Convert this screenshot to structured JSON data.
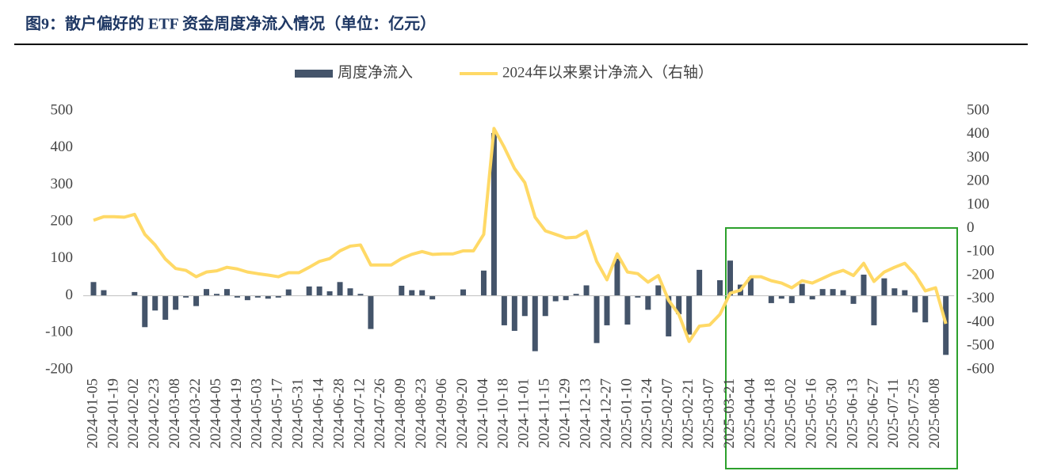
{
  "chart_data": {
    "type": "bar",
    "title": "图9：散户偏好的 ETF 资金周度净流入情况（单位：亿元）",
    "categories": [
      "2024-01-05",
      null,
      "2024-01-19",
      null,
      "2024-02-02",
      null,
      "2024-02-23",
      null,
      "2024-03-08",
      null,
      "2024-03-22",
      null,
      "2024-04-05",
      null,
      "2024-04-19",
      null,
      "2024-05-03",
      null,
      "2024-05-17",
      null,
      "2024-05-31",
      null,
      "2024-06-14",
      null,
      "2024-06-28",
      null,
      "2024-07-12",
      null,
      "2024-07-26",
      null,
      "2024-08-09",
      null,
      "2024-08-23",
      null,
      "2024-09-06",
      null,
      "2024-09-20",
      null,
      "2024-10-04",
      null,
      "2024-10-18",
      null,
      "2024-11-01",
      null,
      "2024-11-15",
      null,
      "2024-11-29",
      null,
      "2024-12-13",
      null,
      "2024-12-27",
      null,
      "2025-01-10",
      null,
      "2025-01-24",
      null,
      "2025-02-07",
      null,
      "2025-02-21",
      null,
      "2025-03-07",
      null,
      "2025-03-21",
      null,
      "2025-04-04",
      null,
      "2025-04-18",
      null,
      "2025-05-02",
      null,
      "2025-05-16",
      null,
      "2025-05-30",
      null,
      "2025-06-13",
      null,
      "2025-06-27",
      null,
      "2025-07-11",
      null,
      "2025-07-25",
      null,
      "2025-08-08",
      null
    ],
    "series": [
      {
        "name": "周度净流入",
        "type": "bar",
        "color": "#44546a",
        "values": [
          37,
          15,
          0,
          0,
          10,
          -85,
          -40,
          -65,
          -38,
          -5,
          -28,
          18,
          5,
          18,
          -5,
          -12,
          -5,
          -8,
          -5,
          17,
          0,
          25,
          25,
          12,
          37,
          20,
          5,
          -90,
          0,
          0,
          27,
          15,
          15,
          -10,
          0,
          0,
          17,
          0,
          68,
          440,
          -80,
          -95,
          -55,
          -150,
          -55,
          -15,
          -12,
          5,
          28,
          -128,
          -80,
          100,
          -78,
          -5,
          -38,
          28,
          -110,
          -50,
          -105,
          70,
          0,
          42,
          95,
          30,
          50,
          0,
          -20,
          -8,
          -20,
          32,
          -10,
          18,
          18,
          15,
          -22,
          57,
          -80,
          47,
          20,
          15,
          -45,
          -72,
          0,
          -160
        ]
      },
      {
        "name": "2024年以来累计净流入（右轴）",
        "type": "line",
        "axis": "y2",
        "color": "#ffd966",
        "values": [
          35,
          50,
          50,
          48,
          60,
          -25,
          -70,
          -130,
          -170,
          -178,
          -205,
          -185,
          -180,
          -165,
          -172,
          -185,
          -192,
          -198,
          -205,
          -188,
          -188,
          -165,
          -140,
          -128,
          -95,
          -75,
          -70,
          -155,
          -155,
          -155,
          -128,
          -110,
          -98,
          -110,
          -108,
          -108,
          -95,
          -95,
          -25,
          425,
          345,
          255,
          195,
          48,
          -10,
          -25,
          -40,
          -37,
          -12,
          -140,
          -218,
          -108,
          -185,
          -192,
          -228,
          -200,
          -305,
          -365,
          -480,
          -415,
          -410,
          -365,
          -275,
          -262,
          -205,
          -205,
          -222,
          -232,
          -252,
          -222,
          -232,
          -212,
          -192,
          -178,
          -200,
          -148,
          -225,
          -185,
          -165,
          -148,
          -195,
          -265,
          -252,
          -405
        ]
      }
    ],
    "ylim": [
      -200,
      500
    ],
    "yticks": [
      500,
      400,
      300,
      200,
      100,
      0,
      -100,
      -200
    ],
    "y2lim": [
      -600,
      500
    ],
    "y2ticks": [
      500,
      400,
      300,
      200,
      100,
      0,
      -100,
      -200,
      -300,
      -400,
      -500,
      -600
    ],
    "legend": "top"
  }
}
